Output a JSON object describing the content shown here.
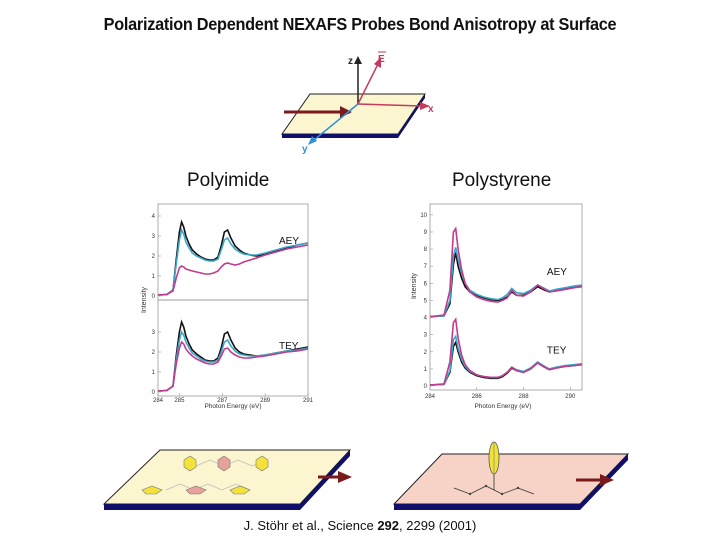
{
  "title": "Polarization Dependent NEXAFS Probes Bond Anisotropy at Surface",
  "geometry": {
    "axis_z": "z",
    "axis_x": "x",
    "axis_y": "y",
    "vector_e": "E"
  },
  "citation": {
    "authors": "J. Stöhr et al., Science ",
    "volume": "292",
    "pages": ", 2299 (2001)"
  },
  "chart_data": [
    {
      "type": "line",
      "title": "Polyimide",
      "xlabel": "Photon Energy (eV)",
      "ylabel": "Intensity",
      "xlim": [
        284,
        291
      ],
      "xticks": [
        "284",
        "285",
        "287",
        "289",
        "291"
      ],
      "colors": [
        "#111111",
        "#3aa7c9",
        "#c43a8c"
      ],
      "panels": [
        {
          "label": "AEY",
          "ylim": [
            0,
            4.4
          ],
          "yticks": [
            "0",
            "1",
            "2",
            "3",
            "4"
          ],
          "x": [
            284.0,
            284.4,
            284.7,
            284.85,
            285.0,
            285.1,
            285.2,
            285.3,
            285.45,
            285.6,
            285.8,
            286.0,
            286.2,
            286.4,
            286.6,
            286.8,
            286.95,
            287.1,
            287.25,
            287.4,
            287.6,
            287.8,
            288.0,
            288.3,
            288.6,
            289.0,
            289.5,
            290.0,
            290.5,
            291.0
          ],
          "series": [
            {
              "values": [
                0.05,
                0.07,
                0.3,
                1.8,
                3.2,
                3.7,
                3.45,
                3.0,
                2.6,
                2.3,
                2.1,
                1.95,
                1.85,
                1.8,
                1.8,
                1.95,
                2.5,
                3.2,
                3.3,
                2.9,
                2.5,
                2.3,
                2.15,
                2.05,
                2.0,
                2.1,
                2.25,
                2.4,
                2.55,
                2.65
              ]
            },
            {
              "values": [
                0.05,
                0.07,
                0.3,
                1.6,
                2.8,
                3.3,
                3.1,
                2.7,
                2.4,
                2.15,
                2.0,
                1.9,
                1.8,
                1.75,
                1.75,
                1.85,
                2.3,
                2.8,
                2.9,
                2.6,
                2.35,
                2.2,
                2.1,
                2.05,
                2.05,
                2.15,
                2.3,
                2.45,
                2.55,
                2.65
              ]
            },
            {
              "values": [
                0.05,
                0.07,
                0.25,
                0.9,
                1.4,
                1.5,
                1.45,
                1.35,
                1.3,
                1.25,
                1.2,
                1.15,
                1.1,
                1.1,
                1.15,
                1.25,
                1.45,
                1.6,
                1.65,
                1.6,
                1.55,
                1.6,
                1.7,
                1.8,
                1.9,
                2.05,
                2.2,
                2.35,
                2.45,
                2.55
              ]
            }
          ]
        },
        {
          "label": "TEY",
          "ylim": [
            0,
            4.4
          ],
          "yticks": [
            "0",
            "1",
            "2",
            "3"
          ],
          "x": [
            284.0,
            284.4,
            284.7,
            284.85,
            285.0,
            285.1,
            285.2,
            285.3,
            285.45,
            285.6,
            285.8,
            286.0,
            286.2,
            286.4,
            286.6,
            286.8,
            286.95,
            287.1,
            287.25,
            287.4,
            287.6,
            287.8,
            288.0,
            288.3,
            288.6,
            289.0,
            289.5,
            290.0,
            290.5,
            291.0
          ],
          "series": [
            {
              "values": [
                0.05,
                0.07,
                0.3,
                1.8,
                3.0,
                3.5,
                3.25,
                2.8,
                2.4,
                2.1,
                1.9,
                1.75,
                1.6,
                1.55,
                1.55,
                1.7,
                2.2,
                2.9,
                3.0,
                2.6,
                2.2,
                2.0,
                1.9,
                1.85,
                1.8,
                1.85,
                1.95,
                2.05,
                2.15,
                2.25
              ]
            },
            {
              "values": [
                0.05,
                0.07,
                0.3,
                1.6,
                2.6,
                3.0,
                2.85,
                2.5,
                2.2,
                1.95,
                1.8,
                1.65,
                1.55,
                1.5,
                1.5,
                1.6,
                2.0,
                2.5,
                2.6,
                2.3,
                2.05,
                1.9,
                1.85,
                1.8,
                1.8,
                1.85,
                1.95,
                2.05,
                2.1,
                2.2
              ]
            },
            {
              "values": [
                0.05,
                0.07,
                0.3,
                1.4,
                2.2,
                2.5,
                2.4,
                2.15,
                1.95,
                1.8,
                1.65,
                1.55,
                1.45,
                1.4,
                1.4,
                1.5,
                1.8,
                2.15,
                2.2,
                2.0,
                1.85,
                1.75,
                1.7,
                1.7,
                1.75,
                1.8,
                1.9,
                2.0,
                2.05,
                2.15
              ]
            }
          ]
        }
      ]
    },
    {
      "type": "line",
      "title": "Polystyrene",
      "xlabel": "Photon Energy (eV)",
      "ylabel": "Intensity",
      "xlim": [
        284,
        290.5
      ],
      "xticks": [
        "284",
        "286",
        "288",
        "290"
      ],
      "yticks": [
        "0",
        "1",
        "2",
        "3",
        "4",
        "5",
        "6",
        "7",
        "8",
        "9",
        "10"
      ],
      "ylim": [
        0,
        10.4
      ],
      "colors": [
        "#111111",
        "#3aa7c9",
        "#c43a8c"
      ],
      "labels": [
        {
          "text": "AEY",
          "x": 289.0,
          "y": 6.5
        },
        {
          "text": "TEY",
          "x": 289.0,
          "y": 1.9
        }
      ],
      "x": [
        284.0,
        284.6,
        284.85,
        285.0,
        285.1,
        285.2,
        285.35,
        285.5,
        285.7,
        286.0,
        286.3,
        286.6,
        286.9,
        287.1,
        287.3,
        287.5,
        287.7,
        288.0,
        288.3,
        288.6,
        288.9,
        289.1,
        289.4,
        289.8,
        290.2,
        290.5
      ],
      "series": [
        {
          "name": "AEY black",
          "values": [
            4.05,
            4.1,
            4.8,
            7.1,
            7.8,
            7.0,
            6.3,
            5.8,
            5.5,
            5.3,
            5.15,
            5.05,
            5.0,
            5.05,
            5.2,
            5.5,
            5.3,
            5.3,
            5.5,
            5.8,
            5.6,
            5.5,
            5.6,
            5.7,
            5.8,
            5.85
          ]
        },
        {
          "name": "AEY cyan",
          "values": [
            4.05,
            4.1,
            5.0,
            7.6,
            8.1,
            7.4,
            6.6,
            6.0,
            5.6,
            5.35,
            5.2,
            5.1,
            5.05,
            5.15,
            5.35,
            5.7,
            5.45,
            5.4,
            5.6,
            5.9,
            5.7,
            5.55,
            5.65,
            5.75,
            5.85,
            5.9
          ]
        },
        {
          "name": "AEY magenta",
          "values": [
            4.05,
            4.15,
            5.6,
            9.0,
            9.2,
            8.0,
            6.8,
            6.0,
            5.5,
            5.2,
            5.05,
            4.95,
            4.9,
            5.0,
            5.15,
            5.6,
            5.3,
            5.25,
            5.5,
            5.9,
            5.65,
            5.5,
            5.55,
            5.65,
            5.75,
            5.8
          ]
        },
        {
          "name": "TEY black",
          "values": [
            0.05,
            0.1,
            0.8,
            2.3,
            2.55,
            2.0,
            1.4,
            1.05,
            0.8,
            0.6,
            0.5,
            0.45,
            0.45,
            0.55,
            0.75,
            1.05,
            0.9,
            0.8,
            1.0,
            1.35,
            1.1,
            0.95,
            1.05,
            1.15,
            1.2,
            1.25
          ]
        },
        {
          "name": "TEY cyan",
          "values": [
            0.05,
            0.1,
            0.9,
            2.7,
            2.9,
            2.2,
            1.55,
            1.15,
            0.85,
            0.65,
            0.55,
            0.5,
            0.5,
            0.6,
            0.8,
            1.1,
            0.95,
            0.85,
            1.05,
            1.4,
            1.15,
            1.0,
            1.1,
            1.2,
            1.25,
            1.3
          ]
        },
        {
          "name": "TEY magenta",
          "values": [
            0.05,
            0.12,
            1.4,
            3.7,
            3.9,
            2.8,
            1.8,
            1.25,
            0.9,
            0.65,
            0.55,
            0.5,
            0.5,
            0.6,
            0.8,
            1.1,
            0.9,
            0.8,
            1.0,
            1.35,
            1.1,
            0.95,
            1.05,
            1.15,
            1.2,
            1.25
          ]
        }
      ]
    }
  ]
}
